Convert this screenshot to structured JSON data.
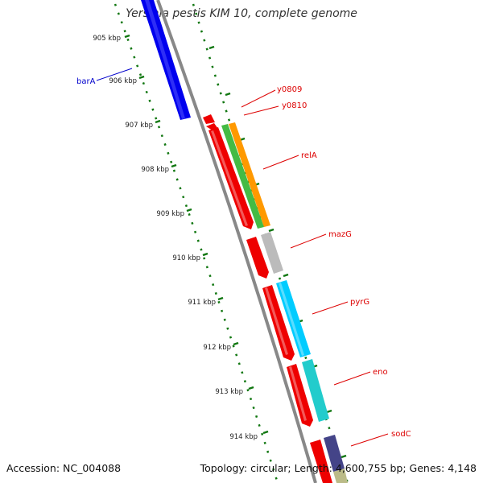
{
  "title": "Yersinia pestis KIM 10, complete genome",
  "footer": {
    "accession": "Accession: NC_004088",
    "summary": "Topology: circular; Length: 4,600,755 bp; Genes: 4,148"
  },
  "ticks": [
    "905 kbp",
    "906 kbp",
    "907 kbp",
    "908 kbp",
    "909 kbp",
    "910 kbp",
    "911 kbp",
    "912 kbp",
    "913 kbp",
    "914 kbp"
  ],
  "genes": [
    {
      "label": "barA",
      "strand": "forward",
      "color": "#0000ee",
      "label_color": "#0000cc"
    },
    {
      "label": "y0809",
      "strand": "reverse",
      "color": "#ee0000",
      "label_color": "#dd0000"
    },
    {
      "label": "y0810",
      "strand": "reverse",
      "color": "#ee0000",
      "label_color": "#dd0000"
    },
    {
      "label": "relA",
      "strand": "reverse",
      "color": "#ee0000",
      "label_color": "#dd0000"
    },
    {
      "label": "mazG",
      "strand": "reverse",
      "color": "#ee0000",
      "label_color": "#dd0000"
    },
    {
      "label": "pyrG",
      "strand": "reverse",
      "color": "#ee0000",
      "label_color": "#dd0000"
    },
    {
      "label": "eno",
      "strand": "reverse",
      "color": "#ee0000",
      "label_color": "#dd0000"
    },
    {
      "label": "sodC",
      "strand": "reverse",
      "color": "#ee0000",
      "label_color": "#dd0000"
    }
  ],
  "colors": {
    "backbone": "#888888",
    "tick_marks": "#117711",
    "tick_labels": "#222222",
    "green": "#44bb44",
    "orange": "#ff9900",
    "gray": "#bbbbbb",
    "cyan": "#00ccff",
    "teal": "#22cccc",
    "navy": "#444488",
    "olive": "#bbbb88"
  }
}
